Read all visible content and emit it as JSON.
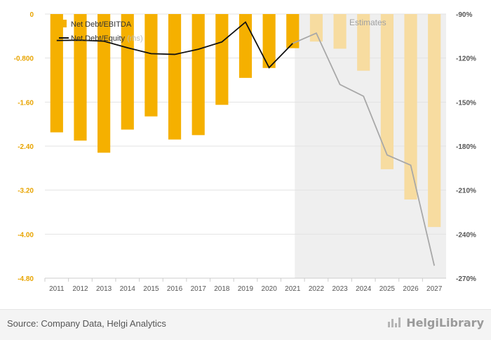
{
  "chart_data": {
    "type": "bar",
    "categories": [
      "2011",
      "2012",
      "2013",
      "2014",
      "2015",
      "2016",
      "2017",
      "2018",
      "2019",
      "2020",
      "2021",
      "2022",
      "2023",
      "2024",
      "2025",
      "2026",
      "2027"
    ],
    "estimates_from_index": 11,
    "series": [
      {
        "name": "Net Debt/EBITDA",
        "type": "bar",
        "axis": "left",
        "color": "#f5b000",
        "estimate_color": "#f7dca0",
        "values": [
          -2.15,
          -2.3,
          -2.52,
          -2.1,
          -1.86,
          -2.28,
          -2.2,
          -1.65,
          -1.16,
          -0.98,
          -0.62,
          -0.5,
          -0.63,
          -1.03,
          -2.82,
          -3.37,
          -3.87
        ]
      },
      {
        "name": "Net Debt/Equity",
        "name_suffix": "(rhs)",
        "type": "line",
        "axis": "right",
        "color": "#111111",
        "estimate_color": "#a8a8a8",
        "values": [
          -108.0,
          -107.8,
          -108.5,
          -113.0,
          -117.0,
          -117.5,
          -114.0,
          -109.0,
          -95.5,
          -126.5,
          -110.0,
          -103.0,
          -138.0,
          -146.0,
          -186.0,
          -193.0,
          -261.5
        ]
      }
    ],
    "ylim": [
      -4.8,
      0
    ],
    "yticks": [
      "0",
      "-0.800",
      "-1.60",
      "-2.40",
      "-3.20",
      "-4.00",
      "-4.80"
    ],
    "ytick_values": [
      0,
      -0.8,
      -1.6,
      -2.4,
      -3.2,
      -4.0,
      -4.8
    ],
    "y2lim": [
      -270,
      -90
    ],
    "y2ticks": [
      "-90%",
      "-120%",
      "-150%",
      "-180%",
      "-210%",
      "-240%",
      "-270%"
    ],
    "y2tick_values": [
      -90,
      -120,
      -150,
      -180,
      -210,
      -240,
      -270
    ],
    "annotation": "Estimates",
    "grid": true,
    "legend_position": "top-left"
  },
  "footer": {
    "source": "Source: Company Data, Helgi Analytics",
    "brand": "HelgiLibrary",
    "brand_icon": "bar-chart-icon"
  }
}
